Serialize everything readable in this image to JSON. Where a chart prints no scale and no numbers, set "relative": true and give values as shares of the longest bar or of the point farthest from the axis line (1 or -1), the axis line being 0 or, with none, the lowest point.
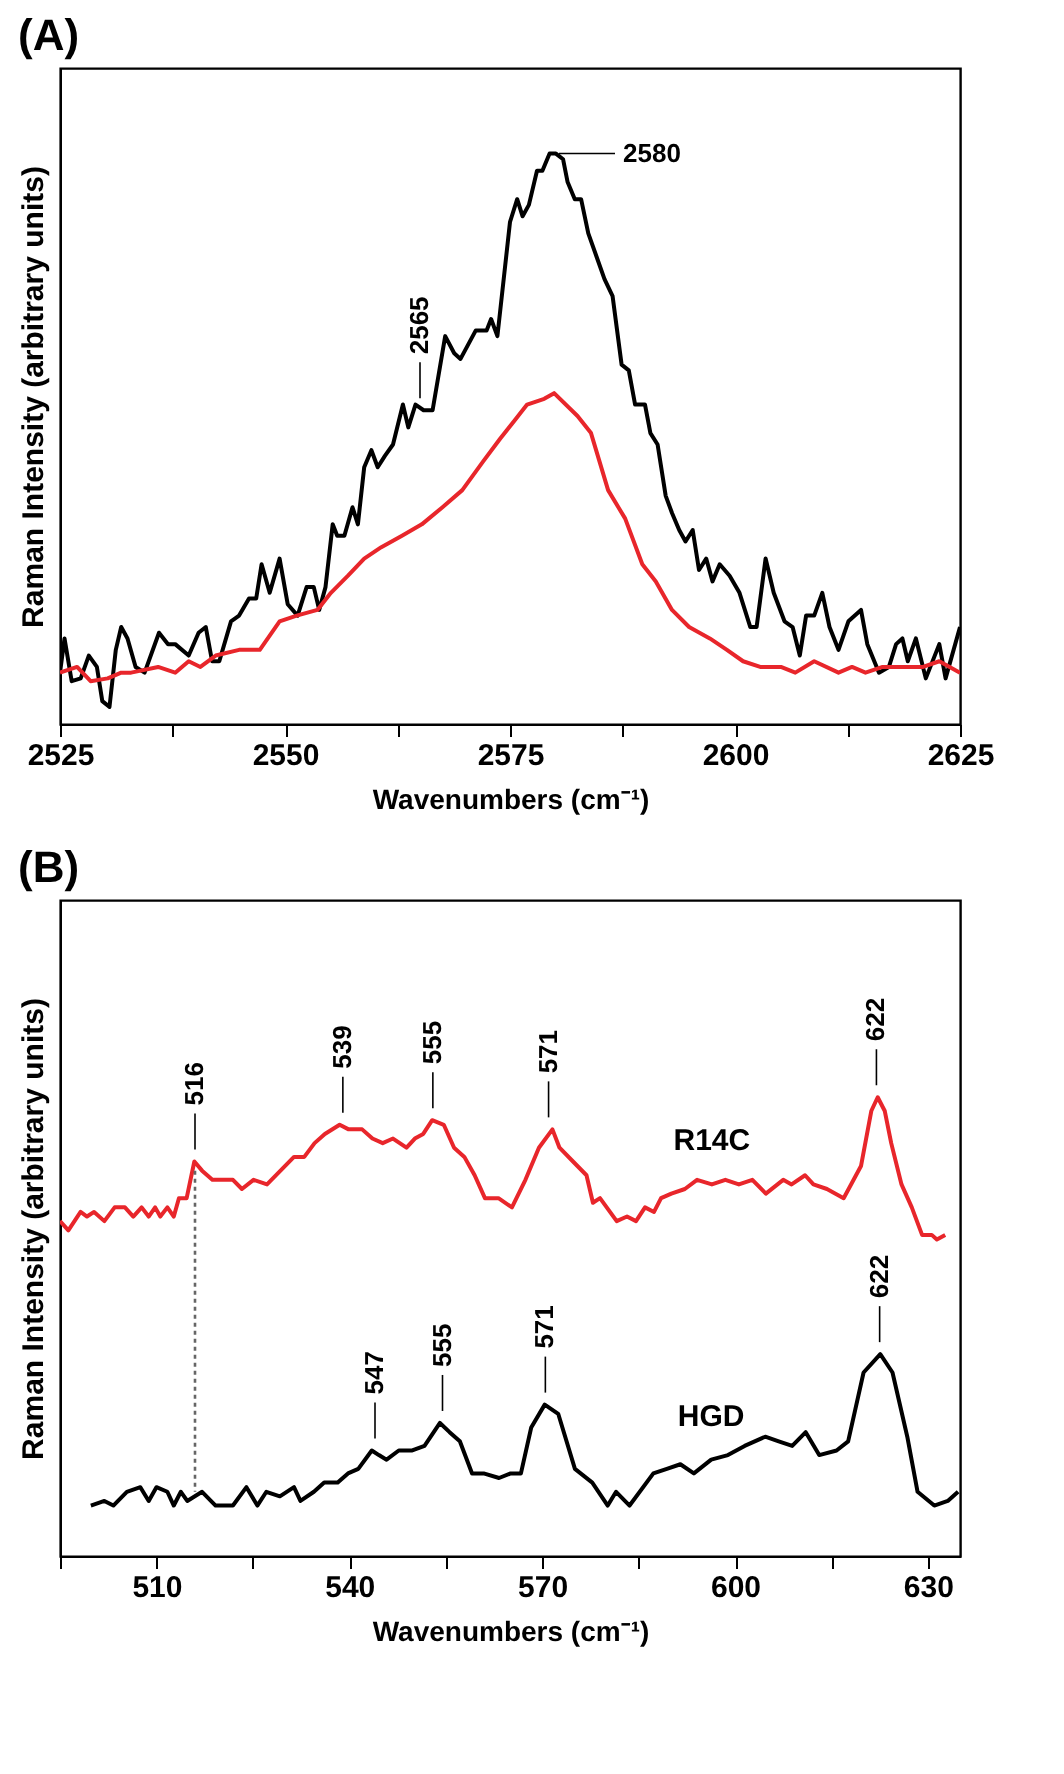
{
  "chart_data": [
    {
      "type": "line",
      "title": "(A)",
      "xlabel": "Wavenumbers (cm⁻¹)",
      "ylabel": "Raman Intensity (arbitrary units)",
      "relative": true,
      "grid": false,
      "xlim": [
        2525,
        2625
      ],
      "xticks": [
        2525,
        {
          "value": 2537.5,
          "label": null
        },
        2550,
        {
          "value": 2562.5,
          "label": null
        },
        2575,
        {
          "value": 2587.5,
          "label": null
        },
        2600,
        {
          "value": 2612.5,
          "label": null
        },
        2625
      ],
      "series": [
        {
          "color": "#000000",
          "x": [
            2525,
            2525.5,
            2526.3,
            2527.3,
            2528.2,
            2529.1,
            2529.7,
            2530.5,
            2531.2,
            2531.8,
            2532.5,
            2533.4,
            2534.4,
            2536,
            2537,
            2537.8,
            2539.3,
            2540.4,
            2541.2,
            2541.9,
            2542.7,
            2544,
            2544.9,
            2546,
            2546.8,
            2547.4,
            2548.3,
            2549.4,
            2550.3,
            2551.4,
            2552.4,
            2553.2,
            2553.8,
            2554.5,
            2555.3,
            2555.8,
            2556.6,
            2557.5,
            2558.1,
            2558.8,
            2559.6,
            2560.3,
            2561.1,
            2562,
            2563.1,
            2563.7,
            2564.5,
            2565.4,
            2566.4,
            2567.8,
            2568.8,
            2569.5,
            2571.2,
            2572.4,
            2572.9,
            2573.6,
            2575,
            2575.8,
            2576.4,
            2577.1,
            2578,
            2578.6,
            2579.4,
            2580.1,
            2580.9,
            2581.4,
            2582.2,
            2582.9,
            2583.7,
            2584.6,
            2585.5,
            2586.4,
            2587.4,
            2588.2,
            2588.9,
            2590,
            2590.6,
            2591.4,
            2592.3,
            2593,
            2593.8,
            2594.5,
            2595.3,
            2596,
            2596.8,
            2597.5,
            2598.3,
            2599.4,
            2600.5,
            2601.7,
            2602.4,
            2603.4,
            2604.3,
            2605.5,
            2606.4,
            2607.2,
            2607.9,
            2608.8,
            2609.7,
            2610.5,
            2611.5,
            2612.6,
            2614,
            2614.7,
            2616,
            2617.1,
            2617.9,
            2618.6,
            2619.2,
            2620.1,
            2621.2,
            2622.7,
            2623.4,
            2625
          ],
          "values": [
            0.09,
            0.15,
            0.075,
            0.08,
            0.12,
            0.1,
            0.04,
            0.03,
            0.13,
            0.17,
            0.15,
            0.1,
            0.09,
            0.16,
            0.14,
            0.14,
            0.12,
            0.16,
            0.17,
            0.11,
            0.11,
            0.18,
            0.19,
            0.22,
            0.22,
            0.28,
            0.23,
            0.29,
            0.21,
            0.19,
            0.24,
            0.24,
            0.2,
            0.24,
            0.35,
            0.33,
            0.33,
            0.38,
            0.35,
            0.45,
            0.48,
            0.45,
            0.47,
            0.49,
            0.56,
            0.52,
            0.56,
            0.55,
            0.55,
            0.68,
            0.65,
            0.64,
            0.69,
            0.69,
            0.71,
            0.68,
            0.88,
            0.92,
            0.89,
            0.91,
            0.97,
            0.97,
            1.0,
            1.0,
            0.99,
            0.95,
            0.92,
            0.92,
            0.86,
            0.82,
            0.78,
            0.75,
            0.63,
            0.62,
            0.56,
            0.56,
            0.51,
            0.49,
            0.4,
            0.37,
            0.34,
            0.32,
            0.34,
            0.27,
            0.29,
            0.25,
            0.28,
            0.26,
            0.23,
            0.17,
            0.17,
            0.29,
            0.23,
            0.18,
            0.17,
            0.12,
            0.19,
            0.19,
            0.23,
            0.17,
            0.13,
            0.18,
            0.2,
            0.14,
            0.09,
            0.1,
            0.14,
            0.15,
            0.11,
            0.15,
            0.08,
            0.14,
            0.08,
            0.17
          ]
        },
        {
          "color": "#e8262b",
          "x": [
            2525,
            2526.9,
            2528.4,
            2530.3,
            2531.8,
            2532.9,
            2535.9,
            2537.8,
            2539.3,
            2540.6,
            2542.3,
            2544.9,
            2547.2,
            2549.4,
            2551.3,
            2553.6,
            2555.1,
            2557,
            2558.8,
            2560.7,
            2563,
            2565.2,
            2567.5,
            2569.7,
            2572,
            2573.9,
            2575.4,
            2576.9,
            2578.8,
            2579.9,
            2582.5,
            2584,
            2585.9,
            2587.8,
            2589.7,
            2591.2,
            2593,
            2594.9,
            2597.2,
            2599.1,
            2600.9,
            2602.8,
            2605.1,
            2606.7,
            2608.8,
            2611.5,
            2613,
            2614.5,
            2616.4,
            2618.6,
            2620.9,
            2622.7,
            2625
          ],
          "values": [
            0.09,
            0.1,
            0.075,
            0.08,
            0.09,
            0.09,
            0.1,
            0.09,
            0.11,
            0.1,
            0.12,
            0.13,
            0.13,
            0.18,
            0.19,
            0.2,
            0.23,
            0.26,
            0.29,
            0.31,
            0.33,
            0.35,
            0.38,
            0.41,
            0.46,
            0.5,
            0.53,
            0.56,
            0.57,
            0.58,
            0.54,
            0.51,
            0.41,
            0.36,
            0.28,
            0.25,
            0.2,
            0.17,
            0.15,
            0.13,
            0.11,
            0.1,
            0.1,
            0.09,
            0.11,
            0.09,
            0.1,
            0.09,
            0.1,
            0.1,
            0.1,
            0.11,
            0.09
          ]
        }
      ],
      "annotations": [
        {
          "text": "2565",
          "x": 2565,
          "y": 0.55
        },
        {
          "text": "2580",
          "x": 2580,
          "y": 1.0
        }
      ]
    },
    {
      "type": "line",
      "title": "(B)",
      "xlabel": "Wavenumbers (cm⁻¹)",
      "ylabel": "Raman Intensity (arbitrary units)",
      "relative": true,
      "grid": false,
      "xlim": [
        495,
        635
      ],
      "xticks": [
        {
          "value": 495,
          "label": null
        },
        510,
        {
          "value": 525,
          "label": null
        },
        540,
        {
          "value": 555,
          "label": null
        },
        570,
        {
          "value": 585,
          "label": null
        },
        600,
        {
          "value": 615,
          "label": null
        },
        630
      ],
      "series": [
        {
          "name": "R14C",
          "color": "#e8262b",
          "x": [
            495,
            496.3,
            498.2,
            499.2,
            500.3,
            501.9,
            503.5,
            505.1,
            506.4,
            507.7,
            508.8,
            509.8,
            510.6,
            511.7,
            512.7,
            513.5,
            514.7,
            515.9,
            517.1,
            518.7,
            520.3,
            521.9,
            523.3,
            525.1,
            527.2,
            529.3,
            531.4,
            533,
            534.6,
            536.2,
            538.5,
            539.9,
            542,
            543.6,
            545.2,
            546.8,
            548.9,
            550.2,
            551.5,
            552.9,
            554.7,
            556.3,
            557.9,
            559.5,
            561.1,
            563.2,
            565.3,
            567.4,
            569.5,
            571.6,
            572.7,
            574.8,
            576.9,
            577.9,
            579,
            581.6,
            583.2,
            584.6,
            586,
            587.4,
            588.5,
            590.1,
            592.2,
            594.1,
            596.4,
            598.5,
            600.6,
            602.7,
            604.8,
            607.5,
            608.8,
            610.9,
            612.2,
            614.3,
            616.9,
            619.6,
            621.2,
            622.2,
            623.3,
            624.3,
            625.9,
            627.5,
            629.1,
            630.6,
            631.4,
            632.7
          ],
          "values": [
            0.73,
            0.71,
            0.75,
            0.74,
            0.75,
            0.73,
            0.76,
            0.76,
            0.74,
            0.76,
            0.74,
            0.76,
            0.74,
            0.76,
            0.74,
            0.78,
            0.78,
            0.86,
            0.84,
            0.82,
            0.82,
            0.82,
            0.8,
            0.82,
            0.81,
            0.84,
            0.87,
            0.87,
            0.9,
            0.92,
            0.94,
            0.93,
            0.93,
            0.91,
            0.9,
            0.91,
            0.89,
            0.91,
            0.92,
            0.95,
            0.94,
            0.89,
            0.87,
            0.83,
            0.78,
            0.78,
            0.76,
            0.82,
            0.89,
            0.93,
            0.89,
            0.86,
            0.83,
            0.77,
            0.78,
            0.73,
            0.74,
            0.73,
            0.76,
            0.75,
            0.78,
            0.79,
            0.8,
            0.82,
            0.81,
            0.82,
            0.81,
            0.82,
            0.79,
            0.82,
            0.81,
            0.83,
            0.81,
            0.8,
            0.78,
            0.85,
            0.97,
            1.0,
            0.97,
            0.9,
            0.81,
            0.76,
            0.7,
            0.7,
            0.69,
            0.7
          ]
        },
        {
          "name": "HGD",
          "color": "#000000",
          "x": [
            499.8,
            501.9,
            503.3,
            505.4,
            507.5,
            508.8,
            510,
            511.7,
            512.7,
            513.8,
            514.8,
            517.1,
            519.2,
            521.9,
            524,
            525.7,
            527.1,
            529.2,
            531.4,
            532.4,
            534.5,
            536.1,
            538.2,
            539.8,
            541.4,
            543.5,
            544.6,
            545.8,
            547.7,
            549.8,
            551.7,
            554.1,
            555.6,
            557.2,
            559.1,
            560.9,
            563.3,
            565.1,
            566.7,
            568.3,
            570.4,
            572.5,
            575.1,
            577.8,
            580.2,
            581.5,
            583.6,
            587.3,
            589.4,
            591.5,
            593.6,
            596.3,
            598.9,
            601.5,
            604.7,
            606.8,
            608.9,
            611,
            613.1,
            615.8,
            617.6,
            620,
            622.6,
            624.5,
            626.8,
            628.4,
            631,
            633.1,
            634.7
          ],
          "values": [
            0.11,
            0.12,
            0.11,
            0.14,
            0.15,
            0.12,
            0.15,
            0.14,
            0.11,
            0.14,
            0.12,
            0.14,
            0.11,
            0.11,
            0.15,
            0.11,
            0.14,
            0.13,
            0.15,
            0.12,
            0.14,
            0.16,
            0.16,
            0.18,
            0.19,
            0.23,
            0.22,
            0.21,
            0.23,
            0.23,
            0.24,
            0.29,
            0.27,
            0.25,
            0.18,
            0.18,
            0.17,
            0.18,
            0.18,
            0.28,
            0.33,
            0.31,
            0.19,
            0.16,
            0.11,
            0.14,
            0.11,
            0.18,
            0.19,
            0.2,
            0.18,
            0.21,
            0.22,
            0.24,
            0.26,
            0.25,
            0.24,
            0.27,
            0.22,
            0.23,
            0.25,
            0.4,
            0.44,
            0.4,
            0.26,
            0.14,
            0.11,
            0.12,
            0.14
          ]
        },
        {
          "color": "#666666",
          "line_style": "dotted",
          "x": [
            516,
            516
          ],
          "values": [
            0.84,
            0.14
          ]
        }
      ],
      "annotations": [
        {
          "text": "516",
          "x": 516,
          "y": 0.86
        },
        {
          "text": "539",
          "x": 539,
          "y": 0.94
        },
        {
          "text": "555",
          "x": 553,
          "y": 0.95
        },
        {
          "text": "571",
          "x": 571,
          "y": 0.93
        },
        {
          "text": "622",
          "x": 622,
          "y": 1.0
        },
        {
          "text": "547",
          "x": 544,
          "y": 0.23
        },
        {
          "text": "555",
          "x": 554.5,
          "y": 0.29
        },
        {
          "text": "571",
          "x": 570.5,
          "y": 0.33
        },
        {
          "text": "622",
          "x": 622.5,
          "y": 0.44
        }
      ]
    }
  ]
}
